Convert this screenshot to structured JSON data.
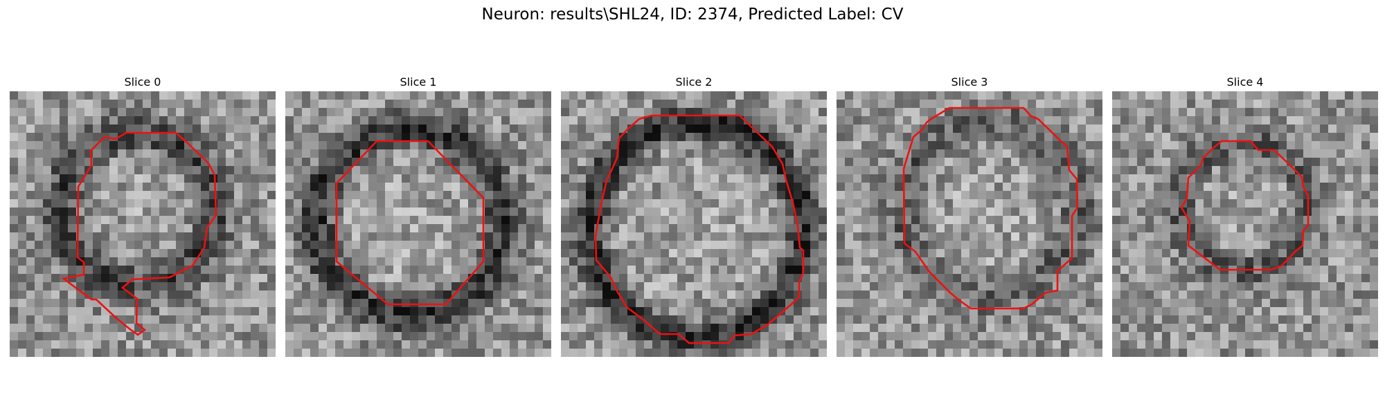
{
  "figure": {
    "title": "Neuron: results\\SHL24, ID: 2374, Predicted Label: CV"
  },
  "slices": [
    {
      "title": "Slice 0",
      "contour_shape": "irregular-blob-with-tail"
    },
    {
      "title": "Slice 1",
      "contour_shape": "octagon"
    },
    {
      "title": "Slice 2",
      "contour_shape": "large-round"
    },
    {
      "title": "Slice 3",
      "contour_shape": "large-round"
    },
    {
      "title": "Slice 4",
      "contour_shape": "small-round"
    }
  ],
  "colors": {
    "contour": "#ee1111",
    "background": "#ffffff"
  },
  "image_style": "grayscale-microscopy-patch"
}
